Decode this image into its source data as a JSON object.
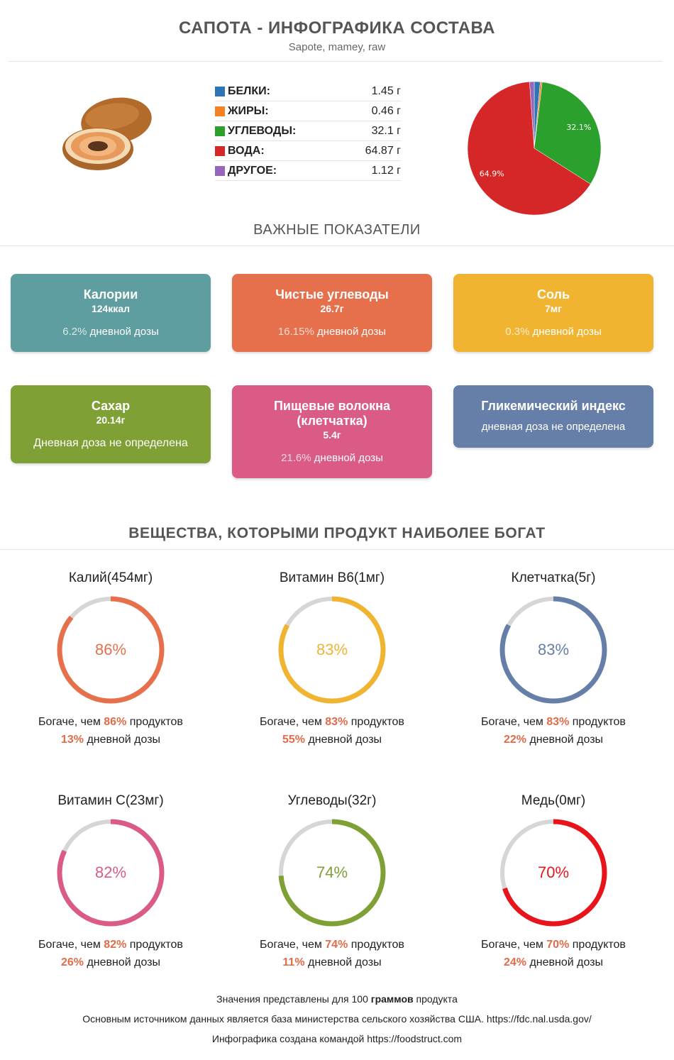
{
  "header": {
    "title": "САПОТА - ИНФОГРАФИКА СОСТАВА",
    "subtitle": "Sapote, mamey, raw"
  },
  "macros": [
    {
      "name": "БЕЛКИ:",
      "value": "1.45 г",
      "color": "#2e75b6"
    },
    {
      "name": "ЖИРЫ:",
      "value": "0.46 г",
      "color": "#f58220"
    },
    {
      "name": "УГЛЕВОДЫ:",
      "value": "32.1 г",
      "color": "#2ca02c"
    },
    {
      "name": "ВОДА:",
      "value": "64.87 г",
      "color": "#d62728"
    },
    {
      "name": "ДРУГОЕ:",
      "value": "1.12 г",
      "color": "#9467bd"
    }
  ],
  "chart_data": {
    "type": "pie",
    "labels": [
      "Белки",
      "Жиры",
      "Углеводы",
      "Вода",
      "Другое"
    ],
    "values": [
      1.45,
      0.46,
      32.1,
      64.87,
      1.12
    ],
    "colors": [
      "#2e75b6",
      "#f58220",
      "#2ca02c",
      "#d62728",
      "#9467bd"
    ],
    "slice_labels": [
      "",
      "",
      "32.1%",
      "64.9%",
      ""
    ]
  },
  "indicators": {
    "title": "ВАЖНЫЕ ПОКАЗАТЕЛИ",
    "cards": [
      {
        "title": "Калории",
        "amount": "124ккал",
        "pct": "6.2%",
        "dose": " дневной дозы",
        "color": "#5f9ea0"
      },
      {
        "title": "Чистые углеводы",
        "amount": "26.7г",
        "pct": "16.15%",
        "dose": " дневной дозы",
        "color": "#e5704b"
      },
      {
        "title": "Соль",
        "amount": "7мг",
        "pct": "0.3%",
        "dose": " дневной дозы",
        "color": "#f0b431"
      },
      {
        "title": "Сахар",
        "amount": "20.14г",
        "pct": "",
        "dose": "Дневная доза не определена",
        "color": "#7fa035"
      },
      {
        "title": "Пищевые волокна (клетчатка)",
        "amount": "5.4г",
        "pct": "21.6%",
        "dose": " дневной дозы",
        "color": "#d95b86"
      },
      {
        "title": "Гликемический индекс",
        "amount": "",
        "pct": "",
        "dose": "дневная доза не определена",
        "color": "#667fa8"
      }
    ]
  },
  "rich": {
    "title": "ВЕЩЕСТВА, КОТОРЫМИ ПРОДУКТ НАИБОЛЕЕ БОГАТ",
    "rich_prefix": "Богаче, чем ",
    "rich_suffix": " продуктов",
    "dose_suffix": " дневной дозы",
    "items": [
      {
        "name": "Калий",
        "amount": "(454мг)",
        "pct": "86%",
        "fraction": 0.86,
        "dose": "13%",
        "color": "#e5704b"
      },
      {
        "name": "Витамин B6",
        "amount": "(1мг)",
        "pct": "83%",
        "fraction": 0.83,
        "dose": "55%",
        "color": "#f0b431"
      },
      {
        "name": "Клетчатка",
        "amount": "(5г)",
        "pct": "83%",
        "fraction": 0.83,
        "dose": "22%",
        "color": "#667fa8"
      },
      {
        "name": "Витамин C",
        "amount": "(23мг)",
        "pct": "82%",
        "fraction": 0.82,
        "dose": "26%",
        "color": "#d95b86"
      },
      {
        "name": "Углеводы",
        "amount": "(32г)",
        "pct": "74%",
        "fraction": 0.74,
        "dose": "11%",
        "color": "#7fa035"
      },
      {
        "name": "Медь",
        "amount": "(0мг)",
        "pct": "70%",
        "fraction": 0.7,
        "dose": "24%",
        "color": "#e8141b"
      }
    ]
  },
  "footer": {
    "line1_pre": "Значения представлены для 100 ",
    "line1_bold": "граммов",
    "line1_post": " продукта",
    "line2": "Основным источником данных является база министерства сельского хозяйства США. https://fdc.nal.usda.gov/",
    "line3": "Инфографика создана командой https://foodstruct.com"
  }
}
